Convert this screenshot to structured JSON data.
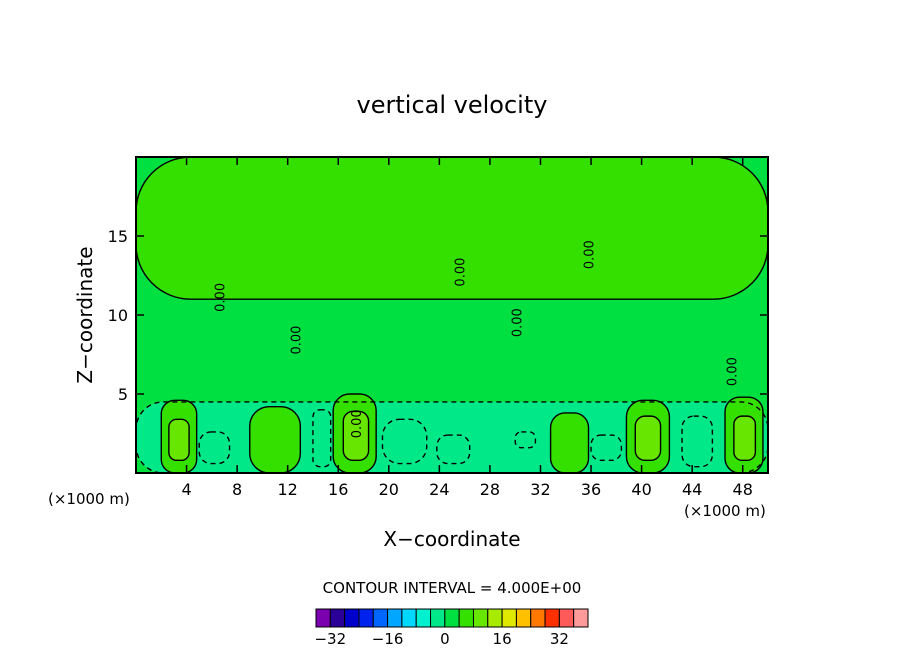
{
  "chart_data": {
    "type": "heatmap",
    "title": "vertical velocity",
    "xlabel": "X−coordinate",
    "ylabel": "Z−coordinate",
    "x_unit_left": "(×1000 m)",
    "x_unit_right": "(×1000 m)",
    "xlim": [
      0,
      50
    ],
    "ylim": [
      0,
      20
    ],
    "x_ticks": [
      4,
      8,
      12,
      16,
      20,
      24,
      28,
      32,
      36,
      40,
      44,
      48
    ],
    "y_ticks": [
      5,
      10,
      15
    ],
    "contour_interval_text": "CONTOUR INTERVAL = 4.000E+00",
    "contour_interval": 4.0,
    "contour_label": "0.00",
    "grid": false,
    "legend_position": "bottom",
    "colorbar": {
      "levels": [
        -36,
        -32,
        -28,
        -24,
        -20,
        -16,
        -12,
        -8,
        -4,
        0,
        4,
        8,
        12,
        16,
        20,
        24,
        28,
        32,
        36
      ],
      "colors": [
        "#7a00b0",
        "#2a0098",
        "#0000cc",
        "#0022ee",
        "#0066ff",
        "#00a6ff",
        "#00d8ff",
        "#00f0d0",
        "#00e888",
        "#00e040",
        "#33e000",
        "#66e600",
        "#a8ea00",
        "#e0e800",
        "#ffc000",
        "#ff7800",
        "#ff3000",
        "#ff5a5a",
        "#ff9a9a"
      ],
      "tick_labels": [
        "−32",
        "−16",
        "0",
        "16",
        "32"
      ],
      "tick_values": [
        -32,
        -16,
        0,
        16,
        32
      ]
    },
    "cells": [
      {
        "x0": 0,
        "x1": 50,
        "z0": 0,
        "z1": 20,
        "value": 0
      },
      {
        "x0": 0,
        "x1": 50,
        "z0": 11,
        "z1": 20,
        "value": 4
      },
      {
        "x0": 0,
        "x1": 50,
        "z0": 0,
        "z1": 4.5,
        "value": -2
      },
      {
        "x0": 2.0,
        "x1": 4.8,
        "z0": 0,
        "z1": 4.6,
        "value": 4
      },
      {
        "x0": 2.6,
        "x1": 4.2,
        "z0": 0.8,
        "z1": 3.4,
        "value": 8
      },
      {
        "x0": 9.0,
        "x1": 13.0,
        "z0": 0,
        "z1": 4.2,
        "value": 4
      },
      {
        "x0": 15.6,
        "x1": 19.0,
        "z0": 0,
        "z1": 5.0,
        "value": 4
      },
      {
        "x0": 16.4,
        "x1": 18.4,
        "z0": 0.8,
        "z1": 3.9,
        "value": 8
      },
      {
        "x0": 32.8,
        "x1": 35.8,
        "z0": 0,
        "z1": 3.8,
        "value": 4
      },
      {
        "x0": 38.8,
        "x1": 42.2,
        "z0": 0,
        "z1": 4.6,
        "value": 4
      },
      {
        "x0": 39.5,
        "x1": 41.5,
        "z0": 0.8,
        "z1": 3.6,
        "value": 8
      },
      {
        "x0": 46.6,
        "x1": 49.6,
        "z0": 0,
        "z1": 4.8,
        "value": 4
      },
      {
        "x0": 47.3,
        "x1": 49.0,
        "z0": 0.8,
        "z1": 3.6,
        "value": 8
      },
      {
        "x0": 5.0,
        "x1": 7.4,
        "z0": 0.6,
        "z1": 2.6,
        "value": -4
      },
      {
        "x0": 14.0,
        "x1": 15.4,
        "z0": 0.4,
        "z1": 4.0,
        "value": -4
      },
      {
        "x0": 19.5,
        "x1": 23.0,
        "z0": 0.6,
        "z1": 3.4,
        "value": -4
      },
      {
        "x0": 23.8,
        "x1": 26.4,
        "z0": 0.6,
        "z1": 2.4,
        "value": -4
      },
      {
        "x0": 30.0,
        "x1": 31.6,
        "z0": 1.6,
        "z1": 2.6,
        "value": -4
      },
      {
        "x0": 36.0,
        "x1": 38.4,
        "z0": 0.8,
        "z1": 2.4,
        "value": -4
      },
      {
        "x0": 43.2,
        "x1": 45.6,
        "z0": 0.4,
        "z1": 3.6,
        "value": -4
      }
    ]
  }
}
